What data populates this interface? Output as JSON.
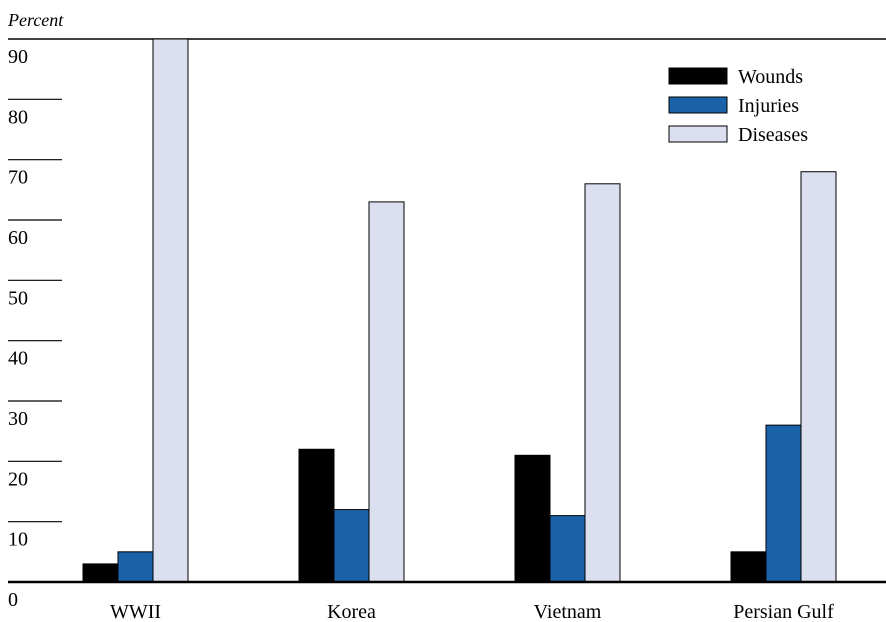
{
  "chart_data": {
    "type": "bar",
    "ylabel": "Percent",
    "ylim": [
      0,
      90
    ],
    "yticks": [
      0,
      10,
      20,
      30,
      40,
      50,
      60,
      70,
      80,
      90
    ],
    "grid": false,
    "legend_position": "top-right",
    "categories": [
      "WWII",
      "Korea",
      "Vietnam",
      "Persian Gulf"
    ],
    "series": [
      {
        "name": "Wounds",
        "color": "#000000",
        "values": [
          3,
          22,
          21,
          5
        ]
      },
      {
        "name": "Injuries",
        "color": "#1b63a8",
        "values": [
          5,
          12,
          11,
          26
        ]
      },
      {
        "name": "Diseases",
        "color": "#dcdff0",
        "values": [
          90,
          63,
          66,
          68
        ]
      }
    ]
  }
}
